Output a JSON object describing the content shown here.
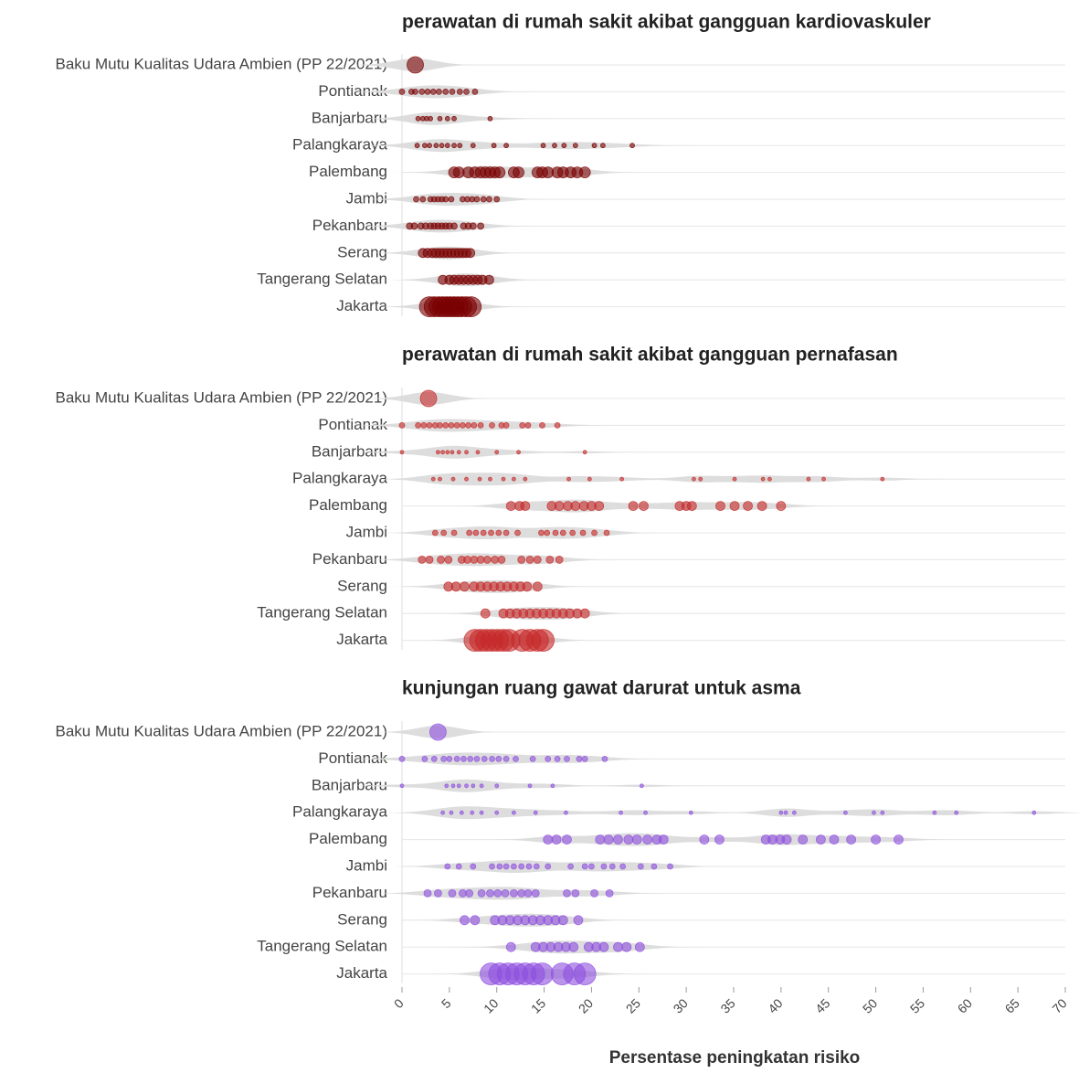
{
  "chart_data": [
    {
      "type": "strip",
      "title": "perawatan di rumah sakit akibat gangguan kardiovaskuler",
      "color": "#7a0000",
      "categories": [
        "Baku Mutu Kualitas Udara Ambien (PP 22/2021)",
        "Pontianak",
        "Banjarbaru",
        "Palangkaraya",
        "Palembang",
        "Jambi",
        "Pekanbaru",
        "Serang",
        "Tangerang Selatan",
        "Jakarta"
      ],
      "sizes": [
        9,
        3,
        2.5,
        2.5,
        6,
        3,
        3.5,
        5,
        5,
        11
      ],
      "values": [
        [
          1.4
        ],
        [
          0,
          1,
          1.4,
          2.1,
          2.7,
          3.3,
          3.9,
          4.6,
          5.3,
          6.1,
          6.8,
          7.7
        ],
        [
          1.7,
          2.2,
          2.6,
          3,
          4,
          4.8,
          5.5,
          9.3
        ],
        [
          1.6,
          2.4,
          2.9,
          3.6,
          4.2,
          4.8,
          5.5,
          6.1,
          7.5,
          9.7,
          11,
          14.9,
          16.1,
          17.1,
          18.3,
          20.3,
          21.2,
          24.3
        ],
        [
          5.5,
          6,
          7,
          7.7,
          8.3,
          8.8,
          9.3,
          9.8,
          10.3,
          11.8,
          12.3,
          14.3,
          14.8,
          15.4,
          16.4,
          17,
          17.8,
          18.5,
          19.3
        ],
        [
          1.5,
          2.2,
          3,
          3.4,
          3.8,
          4.2,
          4.6,
          5.2,
          6.4,
          6.9,
          7.4,
          7.9,
          8.6,
          9.2,
          10
        ],
        [
          0.8,
          1.3,
          2,
          2.5,
          3,
          3.4,
          3.8,
          4.2,
          4.6,
          5,
          5.5,
          6.5,
          7,
          7.5,
          8.3
        ],
        [
          2.2,
          2.7,
          3.2,
          3.6,
          4,
          4.4,
          4.8,
          5.2,
          5.6,
          6,
          6.4,
          6.8,
          7.2
        ],
        [
          4.3,
          5,
          5.5,
          6,
          6.5,
          7,
          7.5,
          8,
          8.5,
          9.2
        ],
        [
          2.9,
          3.4,
          3.9,
          4.3,
          4.7,
          5.1,
          5.5,
          5.9,
          6.3,
          6.8,
          7.3
        ]
      ]
    },
    {
      "type": "strip",
      "title": "perawatan di rumah sakit akibat gangguan pernafasan",
      "color": "#c62828",
      "categories": [
        "Baku Mutu Kualitas Udara Ambien (PP 22/2021)",
        "Pontianak",
        "Banjarbaru",
        "Palangkaraya",
        "Palembang",
        "Jambi",
        "Pekanbaru",
        "Serang",
        "Tangerang Selatan",
        "Jakarta"
      ],
      "sizes": [
        9,
        3,
        2,
        2,
        5,
        3,
        4,
        5,
        5,
        12
      ],
      "values": [
        [
          2.8
        ],
        [
          0,
          1.7,
          2.3,
          2.9,
          3.5,
          4,
          4.6,
          5.2,
          5.8,
          6.4,
          7,
          7.6,
          8.3,
          9.5,
          10.5,
          11,
          12.7,
          13.3,
          14.8,
          16.4
        ],
        [
          0,
          3.8,
          4.3,
          4.8,
          5.3,
          6,
          6.8,
          8,
          10,
          12.3,
          19.3
        ],
        [
          3.3,
          4,
          5.4,
          6.8,
          8.2,
          9.3,
          10.7,
          11.8,
          13,
          17.6,
          19.8,
          23.2,
          30.8,
          31.5,
          35.1,
          38.1,
          38.8,
          42.9,
          44.5,
          50.7
        ],
        [
          11.5,
          12.4,
          13,
          15.8,
          16.6,
          17.5,
          18.3,
          19.2,
          20,
          20.8,
          24.4,
          25.5,
          29.3,
          30,
          30.6,
          33.6,
          35.1,
          36.5,
          38,
          40
        ],
        [
          3.5,
          4.4,
          5.5,
          7.1,
          7.8,
          8.6,
          9.4,
          10.2,
          11,
          12.2,
          14.7,
          15.3,
          16.2,
          17,
          18,
          19.1,
          20.3,
          21.6
        ],
        [
          2.1,
          2.9,
          4.1,
          4.9,
          6.3,
          6.9,
          7.6,
          8.3,
          9,
          9.8,
          10.5,
          12.6,
          13.5,
          14.3,
          15.6,
          16.6
        ],
        [
          4.9,
          5.7,
          6.6,
          7.6,
          8.3,
          9,
          9.7,
          10.4,
          11.1,
          11.8,
          12.5,
          13.2,
          14.3
        ],
        [
          8.8,
          10.7,
          11.4,
          12.1,
          12.8,
          13.5,
          14.2,
          14.9,
          15.6,
          16.3,
          17,
          17.7,
          18.5,
          19.3
        ],
        [
          7.7,
          8.3,
          8.9,
          9.5,
          10.1,
          10.7,
          11.3,
          12.7,
          13.5,
          14.3,
          14.9
        ]
      ]
    },
    {
      "type": "strip",
      "title": "kunjungan ruang gawat darurat untuk asma",
      "color": "#8e4ee0",
      "categories": [
        "Baku Mutu Kualitas Udara Ambien (PP 22/2021)",
        "Pontianak",
        "Banjarbaru",
        "Palangkaraya",
        "Palembang",
        "Jambi",
        "Pekanbaru",
        "Serang",
        "Tangerang Selatan",
        "Jakarta"
      ],
      "sizes": [
        9,
        3,
        2,
        2,
        5,
        3,
        4,
        5,
        5,
        12
      ],
      "values": [
        [
          3.8
        ],
        [
          0,
          2.4,
          3.4,
          4.4,
          5,
          5.8,
          6.5,
          7.2,
          7.9,
          8.7,
          9.5,
          10.2,
          11,
          12,
          13.8,
          15.4,
          16.4,
          17.4,
          18.7,
          19.3,
          21.4
        ],
        [
          0,
          4.7,
          5.4,
          6,
          6.8,
          7.5,
          8.4,
          10,
          13.5,
          15.9,
          25.3
        ],
        [
          4.3,
          5.2,
          6.3,
          7.4,
          8.4,
          10,
          11.8,
          14.1,
          17.3,
          23.1,
          25.7,
          30.5,
          40,
          40.5,
          41.4,
          46.8,
          49.8,
          50.7,
          56.2,
          58.5,
          66.7
        ],
        [
          15.4,
          16.3,
          17.4,
          20.9,
          21.8,
          22.8,
          23.9,
          24.8,
          25.9,
          26.9,
          27.6,
          31.9,
          33.5,
          38.4,
          39.1,
          39.9,
          40.6,
          42.3,
          44.2,
          45.6,
          47.4,
          50,
          52.4
        ],
        [
          4.8,
          6,
          7.5,
          9.5,
          10.3,
          11,
          11.8,
          12.6,
          13.4,
          14.2,
          15.4,
          17.8,
          19.3,
          20,
          21.3,
          22.2,
          23.3,
          25.2,
          26.6,
          28.3
        ],
        [
          2.7,
          3.8,
          5.3,
          6.4,
          7.1,
          8.4,
          9.3,
          10.1,
          10.9,
          11.8,
          12.6,
          13.3,
          14.1,
          17.4,
          18.3,
          20.3,
          21.9
        ],
        [
          6.6,
          7.7,
          9.8,
          10.6,
          11.4,
          12.2,
          13,
          13.8,
          14.6,
          15.4,
          16.2,
          17,
          18.6
        ],
        [
          11.5,
          14.1,
          14.9,
          15.7,
          16.5,
          17.3,
          18.1,
          19.7,
          20.5,
          21.3,
          22.8,
          23.7,
          25.1
        ],
        [
          9.4,
          10.3,
          11.2,
          12.1,
          13,
          13.9,
          14.8,
          16.9,
          18.2,
          19.3
        ]
      ],
      "xlabel": "Persentase peningkatan risiko",
      "xlim": [
        0,
        70
      ],
      "xticks": [
        0,
        5,
        10,
        15,
        20,
        25,
        30,
        35,
        40,
        45,
        50,
        55,
        60,
        65,
        70
      ]
    }
  ]
}
